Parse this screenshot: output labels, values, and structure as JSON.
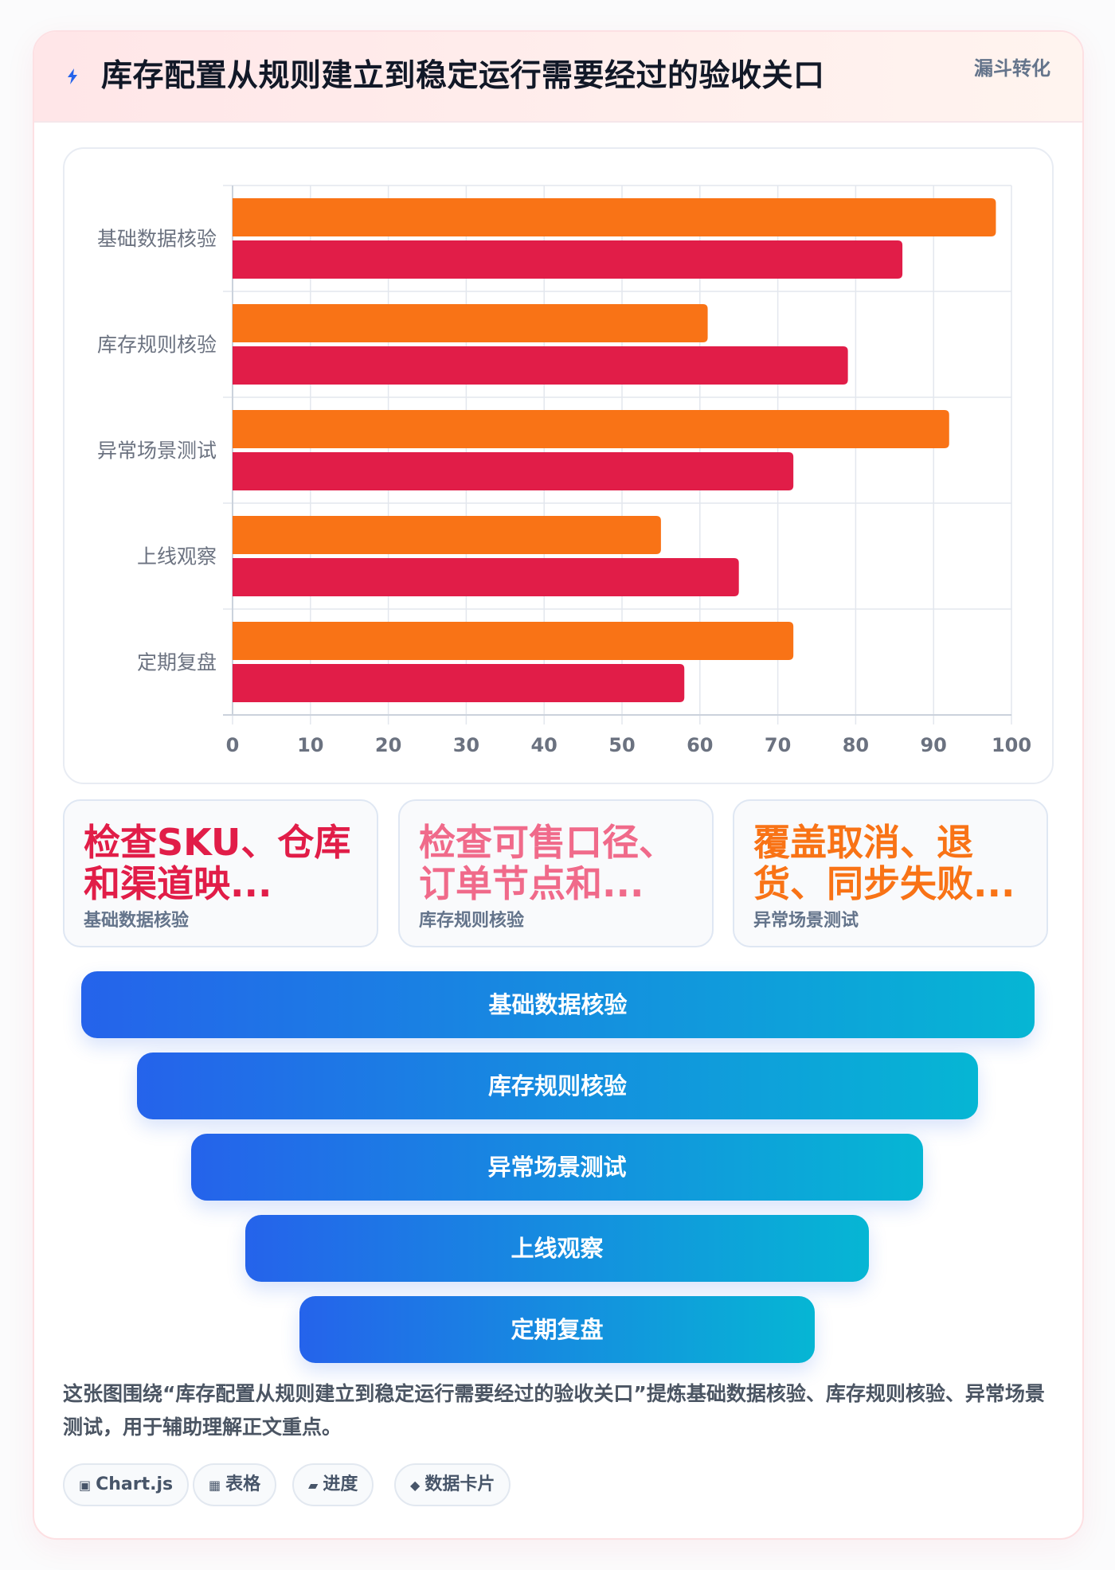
{
  "header": {
    "title": "库存配置从规则建立到稳定运行需要经过的验收关口",
    "tag": "漏斗转化",
    "icon": "lightning-icon"
  },
  "chart_data": {
    "type": "bar",
    "orientation": "horizontal",
    "categories": [
      "基础数据核验",
      "库存规则核验",
      "异常场景测试",
      "上线观察",
      "定期复盘"
    ],
    "series": [
      {
        "color": "#f97316",
        "values": [
          98,
          61,
          92,
          55,
          72
        ]
      },
      {
        "color": "#e11d48",
        "values": [
          86,
          79,
          72,
          65,
          58
        ]
      }
    ],
    "xlim": [
      0,
      100
    ],
    "xticks": [
      0,
      10,
      20,
      30,
      40,
      50,
      60,
      70,
      80,
      90,
      100
    ],
    "grid": true,
    "legend": "none"
  },
  "stats": [
    {
      "value": "检查SKU、仓库和渠道映...",
      "label": "基础数据核验",
      "color": "#e11d48"
    },
    {
      "value": "检查可售口径、订单节点和...",
      "label": "库存规则核验",
      "color": "#f06a8a"
    },
    {
      "value": "覆盖取消、退货、同步失败...",
      "label": "异常场景测试",
      "color": "#f97316"
    }
  ],
  "funnel": [
    {
      "label": "基础数据核验"
    },
    {
      "label": "库存规则核验"
    },
    {
      "label": "异常场景测试"
    },
    {
      "label": "上线观察"
    },
    {
      "label": "定期复盘"
    }
  ],
  "summary": "这张图围绕“库存配置从规则建立到稳定运行需要经过的验收关口”提炼基础数据核验、库存规则核验、异常场景测试，用于辅助理解正文重点。",
  "chips": [
    {
      "icon": "▣",
      "label": "Chart.js"
    },
    {
      "icon": "▦",
      "label": "表格"
    },
    {
      "icon": "▰",
      "label": "进度"
    },
    {
      "icon": "◆",
      "label": "数据卡片"
    }
  ]
}
